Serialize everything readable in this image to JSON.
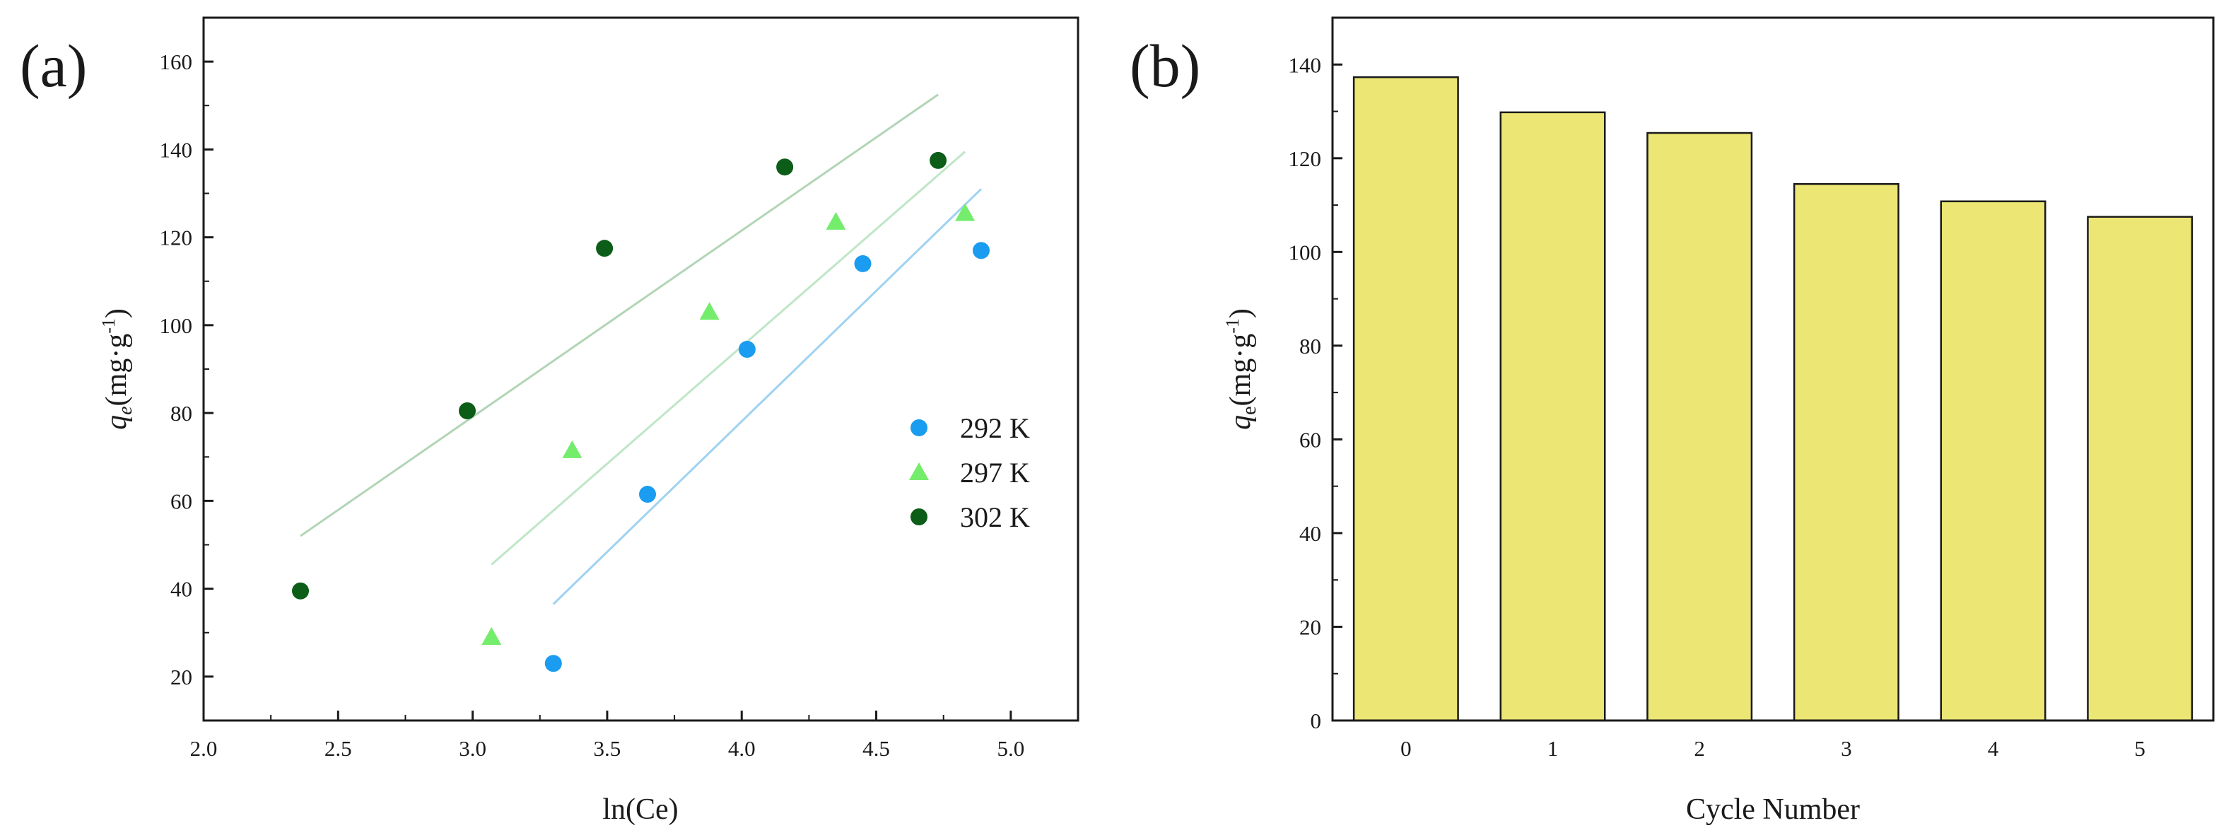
{
  "chart_data": [
    {
      "panel_label": "(a)",
      "type": "scatter",
      "xlabel": "ln(Ce)",
      "ylabel": {
        "symbol": "q",
        "subscript": "e",
        "unit_prefix": "(mg·g",
        "unit_exp": "-1",
        "unit_suffix": ")"
      },
      "xlim": [
        2.0,
        5.25
      ],
      "ylim": [
        10,
        170
      ],
      "x_ticks": [
        "2.0",
        "2.5",
        "3.0",
        "3.5",
        "4.0",
        "4.5",
        "5.0"
      ],
      "y_ticks": [
        "20",
        "40",
        "60",
        "80",
        "100",
        "120",
        "140",
        "160"
      ],
      "legend_position": "right",
      "series": [
        {
          "name": "292 K",
          "marker": "circle",
          "color": "#1a9cf0",
          "fit_color": "#9fd2f2",
          "points": [
            [
              3.3,
              23
            ],
            [
              3.65,
              61.5
            ],
            [
              4.02,
              94.5
            ],
            [
              4.45,
              114
            ],
            [
              4.89,
              117
            ]
          ],
          "fit": [
            [
              3.3,
              36.5
            ],
            [
              4.89,
              131
            ]
          ]
        },
        {
          "name": "297 K",
          "marker": "triangle",
          "color": "#74ec6c",
          "fit_color": "#bfe6c6",
          "points": [
            [
              3.07,
              29
            ],
            [
              3.37,
              71.5
            ],
            [
              3.88,
              103
            ],
            [
              4.35,
              123.5
            ],
            [
              4.83,
              125.5
            ]
          ],
          "fit": [
            [
              3.07,
              45.5
            ],
            [
              4.83,
              139.5
            ]
          ]
        },
        {
          "name": "302 K",
          "marker": "circle",
          "color": "#0b5d18",
          "fit_color": "#b2d5b6",
          "points": [
            [
              2.36,
              39.5
            ],
            [
              2.98,
              80.5
            ],
            [
              3.49,
              117.5
            ],
            [
              4.16,
              136
            ],
            [
              4.73,
              137.5
            ]
          ],
          "fit": [
            [
              2.36,
              52
            ],
            [
              4.73,
              152.5
            ]
          ]
        }
      ]
    },
    {
      "panel_label": "(b)",
      "type": "bar",
      "xlabel": "Cycle Number",
      "ylabel": {
        "symbol": "q",
        "subscript": "e",
        "unit_prefix": "(mg·g",
        "unit_exp": "-1",
        "unit_suffix": ")"
      },
      "categories": [
        "0",
        "1",
        "2",
        "3",
        "4",
        "5"
      ],
      "values": [
        137.3,
        129.8,
        125.4,
        114.5,
        110.8,
        107.5
      ],
      "ylim": [
        0,
        150
      ],
      "y_ticks": [
        "0",
        "20",
        "40",
        "60",
        "80",
        "100",
        "120",
        "140"
      ],
      "bar_color": "#ece675"
    }
  ]
}
